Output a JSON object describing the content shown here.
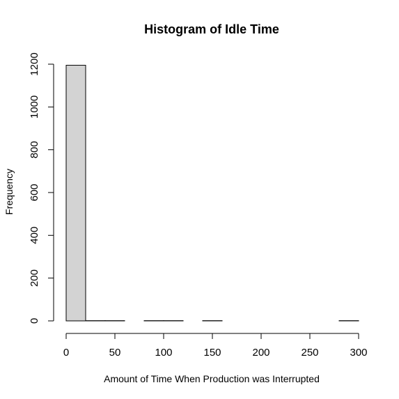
{
  "chart_data": {
    "type": "histogram",
    "title": "Histogram of Idle Time",
    "xlabel": "Amount of Time When Production was Interrupted",
    "ylabel": "Frequency",
    "bin_width": 20,
    "bins": [
      {
        "start": 0,
        "end": 20,
        "count": 1195
      },
      {
        "start": 20,
        "end": 40,
        "count": 1
      },
      {
        "start": 40,
        "end": 60,
        "count": 1
      },
      {
        "start": 60,
        "end": 80,
        "count": 0
      },
      {
        "start": 80,
        "end": 100,
        "count": 1
      },
      {
        "start": 100,
        "end": 120,
        "count": 1
      },
      {
        "start": 120,
        "end": 140,
        "count": 0
      },
      {
        "start": 140,
        "end": 160,
        "count": 1
      },
      {
        "start": 160,
        "end": 180,
        "count": 0
      },
      {
        "start": 180,
        "end": 200,
        "count": 0
      },
      {
        "start": 200,
        "end": 220,
        "count": 0
      },
      {
        "start": 220,
        "end": 240,
        "count": 0
      },
      {
        "start": 240,
        "end": 260,
        "count": 0
      },
      {
        "start": 260,
        "end": 280,
        "count": 0
      },
      {
        "start": 280,
        "end": 300,
        "count": 1
      }
    ],
    "xticks": [
      0,
      50,
      100,
      150,
      200,
      250,
      300
    ],
    "yticks": [
      0,
      200,
      400,
      600,
      800,
      1000,
      1200
    ],
    "xlim": [
      0,
      300
    ],
    "ylim": [
      0,
      1200
    ],
    "grid": false,
    "bar_fill": "#d3d3d3",
    "bar_stroke": "#000000"
  }
}
